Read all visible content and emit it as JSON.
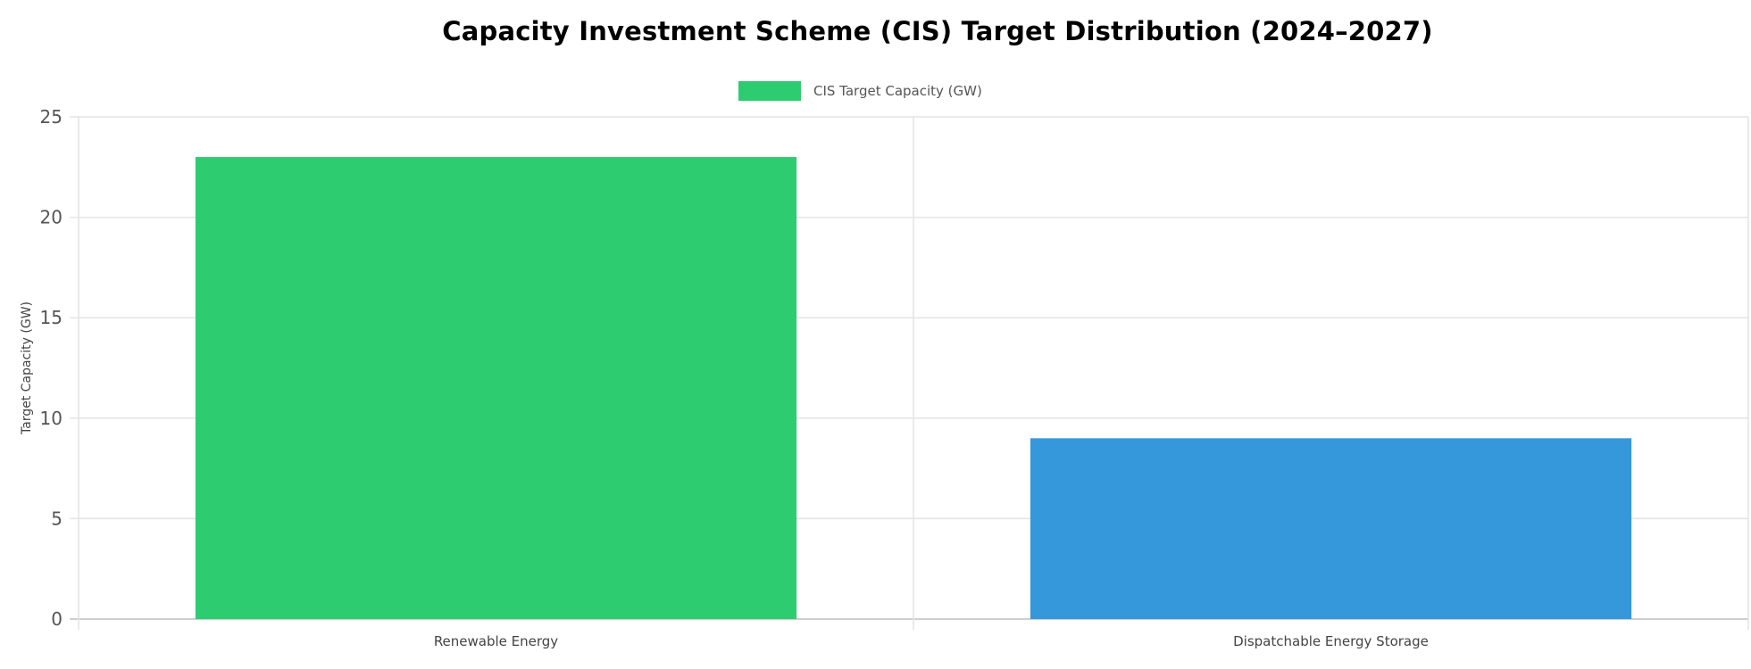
{
  "chart_data": {
    "type": "bar",
    "title": "Capacity Investment Scheme (CIS) Target Distribution (2024–2027)",
    "xlabel": "",
    "ylabel": "Target Capacity (GW)",
    "categories": [
      "Renewable Energy",
      "Dispatchable Energy Storage"
    ],
    "series": [
      {
        "name": "CIS Target Capacity (GW)",
        "values": [
          23,
          9
        ],
        "colors": [
          "#2ecc71",
          "#3498db"
        ]
      }
    ],
    "ylim": [
      0,
      25
    ],
    "yticks": [
      0,
      5,
      10,
      15,
      20,
      25
    ],
    "grid": true,
    "legend": "top-center"
  }
}
